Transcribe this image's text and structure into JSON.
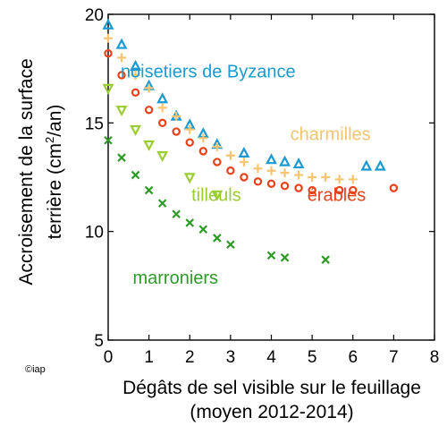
{
  "chart_data": {
    "type": "scatter",
    "xlabel": "Dégâts de sel visible sur le feuillage",
    "xlabel2": "(moyen 2012-2014)",
    "ylabel": "Accroisement de la surface",
    "ylabel2_pre": "terrière (cm",
    "ylabel2_sup": "2",
    "ylabel2_post": "/an)",
    "xlim": [
      0,
      8
    ],
    "ylim": [
      5,
      20
    ],
    "xticks": [
      "0",
      "1",
      "2",
      "3",
      "4",
      "5",
      "6",
      "7",
      "8"
    ],
    "yticks": [
      "5",
      "10",
      "15",
      "20"
    ],
    "grid": false,
    "series": [
      {
        "name": "noisetiers de Byzance",
        "marker": "triangle",
        "color": "#1a9ad0",
        "x": [
          0,
          0.33,
          0.67,
          1.0,
          1.33,
          1.67,
          2.0,
          2.33,
          2.67,
          3.33,
          4.0,
          4.33,
          4.67,
          6.33,
          6.67
        ],
        "y": [
          19.5,
          18.6,
          17.6,
          16.7,
          16.1,
          15.3,
          14.9,
          14.5,
          14.0,
          13.6,
          13.3,
          13.2,
          13.1,
          13.0,
          13.0
        ]
      },
      {
        "name": "charmilles",
        "marker": "plus",
        "color": "#f7c472",
        "x": [
          0,
          0.33,
          0.67,
          1.0,
          1.33,
          1.67,
          2.0,
          2.33,
          2.67,
          3.0,
          3.33,
          3.67,
          4.0,
          4.33,
          4.67,
          5.0,
          5.33,
          5.67,
          6.0
        ],
        "y": [
          18.9,
          18.0,
          17.2,
          16.6,
          15.7,
          15.3,
          14.7,
          14.3,
          13.9,
          13.5,
          13.2,
          12.9,
          12.8,
          12.7,
          12.6,
          12.5,
          12.5,
          12.4,
          12.4
        ]
      },
      {
        "name": "érables",
        "marker": "circle",
        "color": "#e8421d",
        "x": [
          0,
          0.33,
          0.67,
          1.0,
          1.33,
          1.67,
          2.0,
          2.33,
          2.67,
          3.0,
          3.33,
          3.67,
          4.0,
          4.33,
          4.67,
          5.0,
          5.67,
          6.0,
          7.0
        ],
        "y": [
          18.2,
          17.2,
          16.4,
          15.6,
          15.0,
          14.6,
          14.1,
          13.7,
          13.2,
          12.8,
          12.5,
          12.3,
          12.2,
          12.1,
          12.0,
          11.9,
          11.9,
          11.9,
          12.0
        ]
      },
      {
        "name": "tilleuls",
        "marker": "triangle-down",
        "color": "#9acd32",
        "x": [
          0,
          0.33,
          0.67,
          1.0,
          1.33,
          2.0,
          2.67
        ],
        "y": [
          16.6,
          15.6,
          14.7,
          14.0,
          13.5,
          12.5,
          11.7
        ]
      },
      {
        "name": "marroniers",
        "marker": "x",
        "color": "#2e9b27",
        "x": [
          0,
          0.33,
          0.67,
          1.0,
          1.33,
          1.67,
          2.0,
          2.33,
          2.67,
          3.0,
          4.0,
          4.33,
          5.33
        ],
        "y": [
          14.2,
          13.4,
          12.6,
          11.9,
          11.3,
          10.8,
          10.4,
          10.1,
          9.7,
          9.4,
          8.9,
          8.8,
          8.7
        ]
      }
    ],
    "annotations": [
      {
        "text": "noisetiers de Byzance",
        "x": 2.45,
        "y": 17.1,
        "color": "#1a9ad0"
      },
      {
        "text": "charmilles",
        "x": 5.45,
        "y": 14.2,
        "color": "#f7c472"
      },
      {
        "text": "érables",
        "x": 5.6,
        "y": 11.4,
        "color": "#e8421d"
      },
      {
        "text": "tilleuls",
        "x": 2.65,
        "y": 11.4,
        "color": "#9acd32"
      },
      {
        "text": "marroniers",
        "x": 1.65,
        "y": 7.6,
        "color": "#2e9b27"
      }
    ]
  },
  "credit": "©iap"
}
